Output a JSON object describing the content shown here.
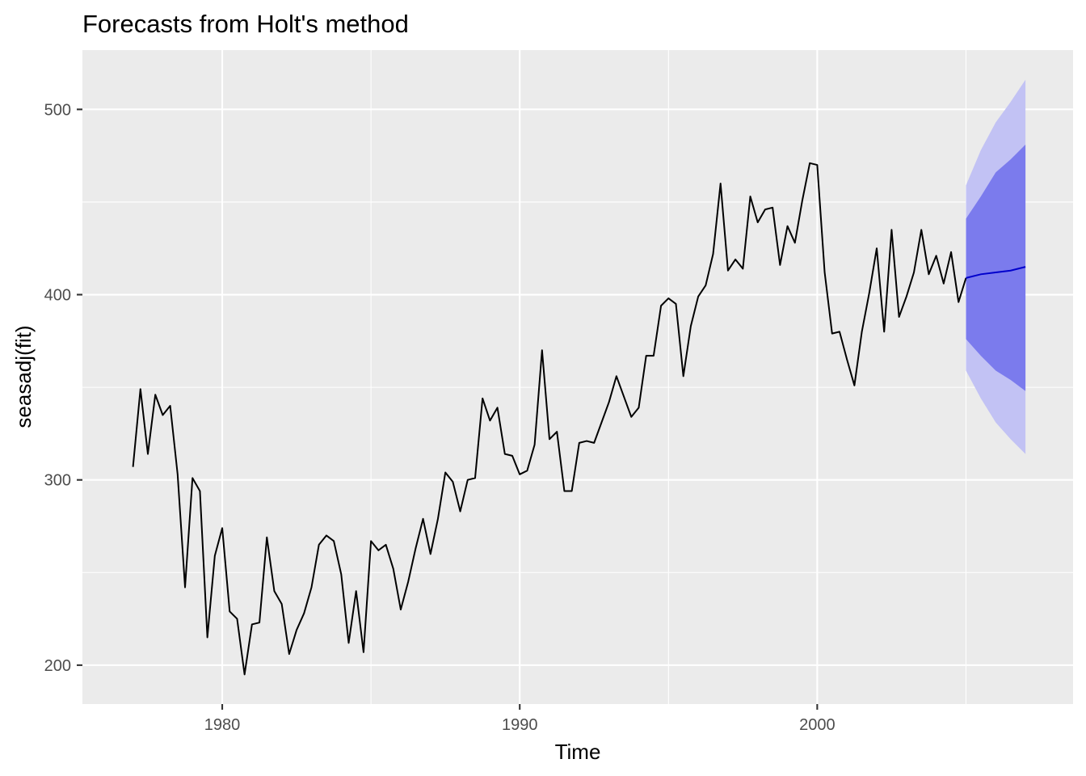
{
  "chart_data": {
    "type": "line",
    "title": "Forecasts from Holt's method",
    "xlabel": "Time",
    "ylabel": "seasadj(fit)",
    "xlim": [
      1975.3,
      2008.6
    ],
    "ylim": [
      179,
      532
    ],
    "x_ticks": [
      1980,
      1990,
      2000
    ],
    "y_ticks": [
      200,
      300,
      400,
      500
    ],
    "x_tick_labels": [
      "1980",
      "1990",
      "2000"
    ],
    "y_tick_labels": [
      "200",
      "300",
      "400",
      "500"
    ],
    "grid": true,
    "legend": "none",
    "colors": {
      "panel": "#ebebeb",
      "series": "#000000",
      "forecast": "#0000cc",
      "band80": "#7b7bed",
      "band95": "#c2c2f4"
    },
    "series": [
      {
        "start": 1977.0,
        "step": 0.25,
        "values": [
          307,
          349,
          314,
          346,
          335,
          340,
          303,
          242,
          301,
          294,
          215,
          259,
          274,
          229,
          225,
          195,
          222,
          223,
          269,
          240,
          233,
          206,
          219,
          228,
          242,
          265,
          270,
          267,
          249,
          212,
          240,
          207,
          267,
          262,
          265,
          252,
          230,
          245,
          263,
          279,
          260,
          279,
          304,
          299,
          283,
          300,
          301,
          344,
          332,
          339,
          314,
          313,
          303,
          305,
          319,
          370,
          322,
          326,
          294,
          294,
          320,
          321,
          320,
          331,
          342,
          356,
          345,
          334,
          339,
          367,
          367,
          394,
          398,
          395,
          356,
          383,
          399,
          405,
          422,
          460,
          413,
          419,
          414,
          453,
          439,
          446,
          447,
          416,
          437,
          428,
          451,
          471,
          470,
          412,
          379,
          380,
          365,
          351,
          380,
          401,
          425,
          380,
          435,
          388,
          399,
          412,
          435,
          411,
          421,
          406,
          423,
          396,
          409
        ]
      }
    ],
    "forecast": {
      "x": [
        2005.0,
        2005.5,
        2006.0,
        2006.5,
        2007.0
      ],
      "mean": [
        409,
        411,
        412,
        413,
        415
      ],
      "lo80": [
        376,
        367,
        359,
        354,
        348
      ],
      "hi80": [
        441,
        453,
        466,
        473,
        481
      ],
      "lo95": [
        359,
        344,
        331,
        322,
        314
      ],
      "hi95": [
        459,
        478,
        493,
        504,
        516
      ]
    }
  }
}
